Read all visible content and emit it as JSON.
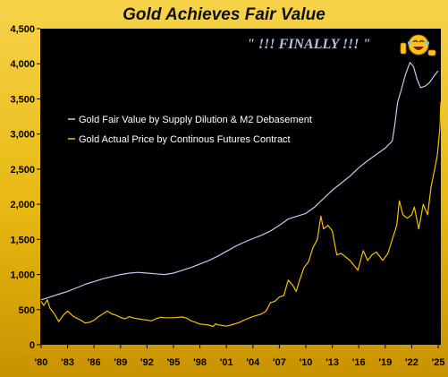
{
  "chart_data": {
    "type": "line",
    "title": "Gold Achieves Fair Value",
    "annotation": "\" !!! FINALLY !!! \"",
    "annotation_icon": "laughing-emoji-icon",
    "x_tick_labels": [
      "'80",
      "'83",
      "'86",
      "'89",
      "'92",
      "'95",
      "'98",
      "'01",
      "'04",
      "'07",
      "'10",
      "'13",
      "'16",
      "'19",
      "'22",
      "'25"
    ],
    "x_ticks": [
      1980,
      1983,
      1986,
      1989,
      1992,
      1995,
      1998,
      2001,
      2004,
      2007,
      2010,
      2013,
      2016,
      2019,
      2022,
      2025
    ],
    "xlim": [
      1979.9,
      2025.3
    ],
    "y_tick_labels": [
      "0",
      "500",
      "1,000",
      "1,500",
      "2,000",
      "2,500",
      "3,000",
      "3,500",
      "4,000",
      "4,500"
    ],
    "y_ticks": [
      0,
      500,
      1000,
      1500,
      2000,
      2500,
      3000,
      3500,
      4000,
      4500
    ],
    "ylim": [
      0,
      4500
    ],
    "grid": false,
    "legend_position": "upper-left",
    "colors": {
      "plot_background": "#000000",
      "frame_background": "#e8b812"
    },
    "series": [
      {
        "name": "Gold Fair Value by Supply Dilution & M2 Debasement",
        "color": "#c5c8f2",
        "points": [
          [
            1980.0,
            640
          ],
          [
            1981.0,
            680
          ],
          [
            1982.0,
            720
          ],
          [
            1983.0,
            760
          ],
          [
            1984.0,
            810
          ],
          [
            1985.0,
            860
          ],
          [
            1986.0,
            900
          ],
          [
            1987.0,
            940
          ],
          [
            1988.0,
            970
          ],
          [
            1989.0,
            1000
          ],
          [
            1990.0,
            1020
          ],
          [
            1991.0,
            1030
          ],
          [
            1992.0,
            1020
          ],
          [
            1993.0,
            1010
          ],
          [
            1994.0,
            1000
          ],
          [
            1995.0,
            1020
          ],
          [
            1996.0,
            1060
          ],
          [
            1997.0,
            1100
          ],
          [
            1998.0,
            1150
          ],
          [
            1999.0,
            1200
          ],
          [
            2000.0,
            1260
          ],
          [
            2001.0,
            1330
          ],
          [
            2002.0,
            1400
          ],
          [
            2003.0,
            1460
          ],
          [
            2004.0,
            1510
          ],
          [
            2005.0,
            1560
          ],
          [
            2006.0,
            1620
          ],
          [
            2007.0,
            1700
          ],
          [
            2008.0,
            1790
          ],
          [
            2009.0,
            1830
          ],
          [
            2010.0,
            1870
          ],
          [
            2011.0,
            1960
          ],
          [
            2012.0,
            2080
          ],
          [
            2013.0,
            2200
          ],
          [
            2014.0,
            2300
          ],
          [
            2015.0,
            2400
          ],
          [
            2016.0,
            2520
          ],
          [
            2017.0,
            2620
          ],
          [
            2018.0,
            2710
          ],
          [
            2019.0,
            2800
          ],
          [
            2019.8,
            2900
          ],
          [
            2020.1,
            3150
          ],
          [
            2020.4,
            3450
          ],
          [
            2020.8,
            3620
          ],
          [
            2021.3,
            3850
          ],
          [
            2021.8,
            4020
          ],
          [
            2022.2,
            3960
          ],
          [
            2022.6,
            3780
          ],
          [
            2023.0,
            3660
          ],
          [
            2023.5,
            3680
          ],
          [
            2024.0,
            3730
          ],
          [
            2024.5,
            3820
          ],
          [
            2025.0,
            3900
          ]
        ]
      },
      {
        "name": "Gold Actual Price by Continous Futures Contract",
        "color": "#f5c000",
        "points": [
          [
            1980.0,
            620
          ],
          [
            1980.3,
            560
          ],
          [
            1980.7,
            640
          ],
          [
            1981.0,
            520
          ],
          [
            1981.5,
            440
          ],
          [
            1982.0,
            330
          ],
          [
            1982.5,
            420
          ],
          [
            1983.0,
            480
          ],
          [
            1983.5,
            420
          ],
          [
            1984.0,
            380
          ],
          [
            1984.5,
            350
          ],
          [
            1985.0,
            310
          ],
          [
            1985.5,
            320
          ],
          [
            1986.0,
            350
          ],
          [
            1986.5,
            400
          ],
          [
            1987.0,
            440
          ],
          [
            1987.5,
            480
          ],
          [
            1988.0,
            440
          ],
          [
            1988.5,
            420
          ],
          [
            1989.0,
            390
          ],
          [
            1989.5,
            370
          ],
          [
            1990.0,
            400
          ],
          [
            1990.5,
            380
          ],
          [
            1991.0,
            370
          ],
          [
            1991.5,
            360
          ],
          [
            1992.0,
            350
          ],
          [
            1992.5,
            340
          ],
          [
            1993.0,
            370
          ],
          [
            1993.5,
            390
          ],
          [
            1994.0,
            385
          ],
          [
            1995.0,
            385
          ],
          [
            1996.0,
            395
          ],
          [
            1996.5,
            380
          ],
          [
            1997.0,
            340
          ],
          [
            1997.5,
            320
          ],
          [
            1998.0,
            295
          ],
          [
            1998.5,
            290
          ],
          [
            1999.0,
            280
          ],
          [
            1999.5,
            260
          ],
          [
            1999.8,
            300
          ],
          [
            2000.0,
            285
          ],
          [
            2001.0,
            265
          ],
          [
            2001.5,
            280
          ],
          [
            2002.0,
            300
          ],
          [
            2002.5,
            320
          ],
          [
            2003.0,
            350
          ],
          [
            2004.0,
            400
          ],
          [
            2004.5,
            420
          ],
          [
            2005.0,
            440
          ],
          [
            2005.5,
            480
          ],
          [
            2006.0,
            600
          ],
          [
            2006.5,
            620
          ],
          [
            2007.0,
            680
          ],
          [
            2007.5,
            700
          ],
          [
            2008.0,
            920
          ],
          [
            2008.5,
            850
          ],
          [
            2008.9,
            760
          ],
          [
            2009.3,
            920
          ],
          [
            2009.8,
            1100
          ],
          [
            2010.3,
            1180
          ],
          [
            2010.8,
            1380
          ],
          [
            2011.3,
            1500
          ],
          [
            2011.7,
            1830
          ],
          [
            2012.0,
            1650
          ],
          [
            2012.5,
            1700
          ],
          [
            2013.0,
            1620
          ],
          [
            2013.5,
            1280
          ],
          [
            2014.0,
            1300
          ],
          [
            2014.5,
            1250
          ],
          [
            2015.0,
            1200
          ],
          [
            2015.9,
            1060
          ],
          [
            2016.5,
            1340
          ],
          [
            2017.0,
            1200
          ],
          [
            2017.5,
            1280
          ],
          [
            2018.0,
            1320
          ],
          [
            2018.7,
            1200
          ],
          [
            2019.3,
            1300
          ],
          [
            2019.8,
            1500
          ],
          [
            2020.3,
            1700
          ],
          [
            2020.6,
            2050
          ],
          [
            2021.0,
            1850
          ],
          [
            2021.5,
            1800
          ],
          [
            2022.0,
            1850
          ],
          [
            2022.3,
            1960
          ],
          [
            2022.8,
            1650
          ],
          [
            2023.3,
            2000
          ],
          [
            2023.8,
            1850
          ],
          [
            2024.2,
            2250
          ],
          [
            2024.6,
            2500
          ],
          [
            2024.9,
            2700
          ],
          [
            2025.2,
            3100
          ],
          [
            2025.3,
            3460
          ]
        ]
      }
    ]
  }
}
